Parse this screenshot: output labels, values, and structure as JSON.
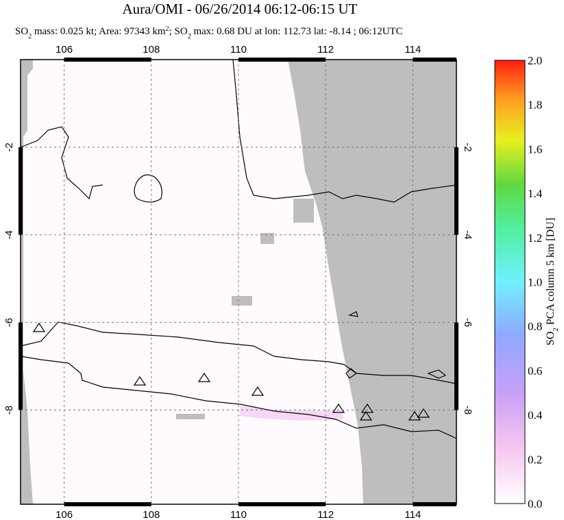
{
  "header": {
    "title": "Aura/OMI - 06/26/2014 06:12-06:15 UT",
    "subtitle_parts": [
      "SO",
      "2",
      " mass: 0.025 kt; Area: 97343 km",
      "2",
      "; SO",
      "2",
      " max: 0.68 DU at lon: 112.73 lat: -8.14 ; 06:12UTC"
    ]
  },
  "map": {
    "xlim": [
      105,
      115
    ],
    "ylim": [
      -10.15,
      0
    ],
    "xticks": [
      106,
      108,
      110,
      112,
      114
    ],
    "yticks": [
      -2,
      -4,
      -6,
      -8
    ]
  },
  "colorbar": {
    "label_parts": [
      "SO",
      "2",
      " PCA column 5 km [DU]"
    ],
    "lim": [
      0,
      2
    ],
    "ticks": [
      {
        "value": 0,
        "label": "0.0"
      },
      {
        "value": 0.2,
        "label": "0.2"
      },
      {
        "value": 0.4,
        "label": "0.4"
      },
      {
        "value": 0.6,
        "label": "0.6"
      },
      {
        "value": 0.8,
        "label": "0.8"
      },
      {
        "value": 1,
        "label": "1.0"
      },
      {
        "value": 1.2,
        "label": "1.2"
      },
      {
        "value": 1.4,
        "label": "1.4"
      },
      {
        "value": 1.6,
        "label": "1.6"
      },
      {
        "value": 1.8,
        "label": "1.8"
      },
      {
        "value": 2,
        "label": "2.0"
      }
    ]
  }
}
